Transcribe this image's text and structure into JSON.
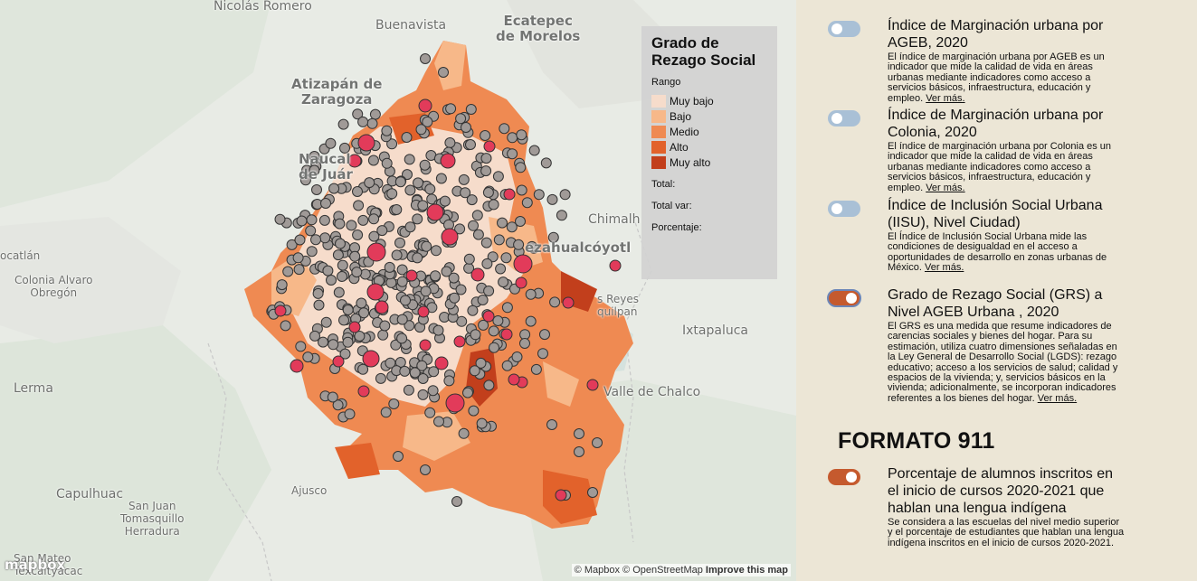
{
  "map": {
    "places": [
      {
        "id": "nicolas-romero",
        "text": "Nicolás Romero"
      },
      {
        "id": "buenavista",
        "text": "Buenavista"
      },
      {
        "id": "ecatepec",
        "text": "Ecatepec\nde Morelos"
      },
      {
        "id": "atizapan",
        "text": "Atizapán de\nZaragoza"
      },
      {
        "id": "naucalpan",
        "text": "Naucal\nde Juár"
      },
      {
        "id": "chimalhuacan",
        "text": "Chimalh"
      },
      {
        "id": "nezahualcoyotl",
        "text": "ezahualcóyotl"
      },
      {
        "id": "ocatlan",
        "text": "ocatlán"
      },
      {
        "id": "colonia-alvaro-obregon",
        "text": "Colonia Alvaro\nObregón"
      },
      {
        "id": "los-reyes",
        "text": "s Reyes\nquilpan"
      },
      {
        "id": "ixtapaluca",
        "text": "Ixtapaluca"
      },
      {
        "id": "lerma",
        "text": "Lerma"
      },
      {
        "id": "valle-de-chalco",
        "text": "Valle de Chalco"
      },
      {
        "id": "ajusco",
        "text": "Ajusco"
      },
      {
        "id": "capulhuac",
        "text": "Capulhuac"
      },
      {
        "id": "san-juan-tomasquillo",
        "text": "San Juan\nTomasquillo\nHerradura"
      },
      {
        "id": "san-mateo",
        "text": "San Mateo\nTexcaltyacac"
      }
    ],
    "attribution": {
      "mapbox": "© Mapbox",
      "osm": "© OpenStreetMap",
      "improve": "Improve this map"
    },
    "logo": "mapbox",
    "choropleth_color_levels": [
      "#f6dccb",
      "#f7b889",
      "#ef8a52",
      "#e2622b",
      "#c23f1c"
    ],
    "marker_colors": {
      "gray": "#a09a97",
      "red": "#e23b5a"
    }
  },
  "legend": {
    "title": "Grado de Rezago Social",
    "subtitle": "Rango",
    "items": [
      {
        "label": "Muy bajo",
        "color": "#f6dccb"
      },
      {
        "label": "Bajo",
        "color": "#f7b889"
      },
      {
        "label": "Medio",
        "color": "#ef8a52"
      },
      {
        "label": "Alto",
        "color": "#e2622b"
      },
      {
        "label": "Muy alto",
        "color": "#c23f1c"
      }
    ],
    "stats": [
      "Total:",
      "Total var:",
      "Porcentaje:"
    ]
  },
  "panel": {
    "layers": [
      {
        "title": "Índice de Marginación urbana por AGEB, 2020",
        "desc": "El índice de marginación urbana por AGEB es un indicador que mide la calidad de vida en áreas urbanas mediante indicadores como acceso a servicios básicos, infraestructura, educación y empleo.",
        "more": "Ver más.",
        "on": false
      },
      {
        "title": "Índice de Marginación urbana por Colonia, 2020",
        "desc": "El índice de marginación urbana por Colonia es un indicador que mide la calidad de vida en áreas urbanas mediante indicadores como acceso a servicios básicos, infraestructura, educación y empleo.",
        "more": "Ver más.",
        "on": false
      },
      {
        "title": "Índice de Inclusión Social Urbana (IISU), Nivel Ciudad)",
        "desc": "El Índice de Inclusión Social Urbana mide las condiciones de desigualdad en el acceso a oportunidades de desarrollo en zonas urbanas de México.",
        "more": "Ver más.",
        "on": false
      },
      {
        "title": "Grado de Rezago Social (GRS) a Nivel AGEB Urbana , 2020",
        "desc": "El GRS es una medida que resume indicadores de carencias sociales y bienes del hogar. Para su estimación, utiliza cuatro dimensiones señaladas en la Ley General de Desarrollo Social (LGDS): rezago educativo; acceso a los servicios de salud; calidad y espacios de la vivienda; y, servicios básicos en la vivienda; adicionalmente, se incorporan indicadores referentes a los bienes del hogar.",
        "more": "Ver más.",
        "on": true
      }
    ],
    "section_title": "FORMATO 911",
    "section_layers": [
      {
        "title": "Porcentaje de alumnos inscritos en el inicio de cursos 2020-2021 que hablan una lengua indígena",
        "desc": "Se considera a las escuelas del nivel medio superior y el porcentaje de estudiantes que hablan una lengua indígena inscritos en el inicio de cursos 2020-2021.",
        "more": "",
        "on": true
      }
    ],
    "toggle_colors": {
      "off": "#a9c0d6",
      "on": "#c55a2e"
    }
  }
}
